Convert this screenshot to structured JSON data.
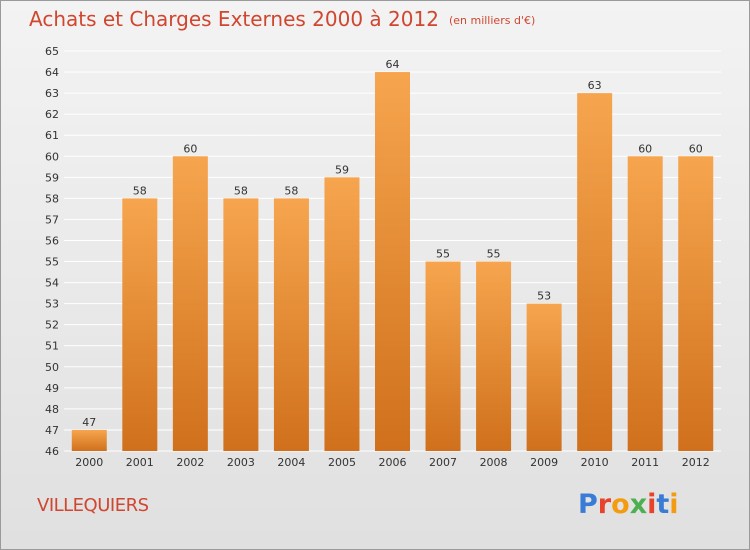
{
  "header": {
    "title": "Achats et Charges Externes 2000 à 2012",
    "subtitle": "(en milliers d'€)"
  },
  "footer": {
    "city": "VILLEQUIERS",
    "logo_text": "Proxiti",
    "logo_colors": [
      "#3a7bd5",
      "#e8412c",
      "#f39c12",
      "#4caf50",
      "#e8412c",
      "#3a7bd5",
      "#f39c12"
    ]
  },
  "colors": {
    "title": "#d0462f",
    "bar_top": "#f6a54e",
    "bar_bottom": "#d0701c",
    "grid": "#ffffff",
    "axis_text": "#333333"
  },
  "chart_data": {
    "type": "bar",
    "categories": [
      "2000",
      "2001",
      "2002",
      "2003",
      "2004",
      "2005",
      "2006",
      "2007",
      "2008",
      "2009",
      "2010",
      "2011",
      "2012"
    ],
    "values": [
      47,
      58,
      60,
      58,
      58,
      59,
      64,
      55,
      55,
      53,
      63,
      60,
      60
    ],
    "ylim": [
      46,
      65
    ],
    "yticks": [
      46,
      47,
      48,
      49,
      50,
      51,
      52,
      53,
      54,
      55,
      56,
      57,
      58,
      59,
      60,
      61,
      62,
      63,
      64,
      65
    ],
    "grid": true,
    "title": "Achats et Charges Externes 2000 à 2012",
    "subtitle": "(en milliers d'€)",
    "xlabel": "",
    "ylabel": ""
  }
}
